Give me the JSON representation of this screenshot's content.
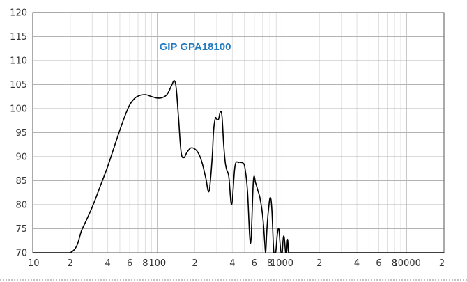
{
  "chart_data": {
    "type": "line",
    "title": "GIP GPA18100",
    "title_color": "#1f7ac0",
    "line_color": "#000000",
    "xscale": "log",
    "xlim": [
      10,
      20000
    ],
    "ylim": [
      70,
      120
    ],
    "x_ticks": [
      {
        "value": 10,
        "label": "10"
      },
      {
        "value": 20,
        "label": "2"
      },
      {
        "value": 40,
        "label": "4"
      },
      {
        "value": 60,
        "label": "6"
      },
      {
        "value": 80,
        "label": "8"
      },
      {
        "value": 100,
        "label": "100"
      },
      {
        "value": 200,
        "label": "2"
      },
      {
        "value": 400,
        "label": "4"
      },
      {
        "value": 600,
        "label": "6"
      },
      {
        "value": 800,
        "label": "8"
      },
      {
        "value": 1000,
        "label": "1000"
      },
      {
        "value": 2000,
        "label": "2"
      },
      {
        "value": 4000,
        "label": "4"
      },
      {
        "value": 6000,
        "label": "6"
      },
      {
        "value": 8000,
        "label": "8"
      },
      {
        "value": 10000,
        "label": "10000"
      },
      {
        "value": 20000,
        "label": "2"
      }
    ],
    "y_ticks": [
      {
        "value": 120,
        "label": "120"
      },
      {
        "value": 115,
        "label": "115"
      },
      {
        "value": 110,
        "label": "110"
      },
      {
        "value": 105,
        "label": "105"
      },
      {
        "value": 100,
        "label": "100"
      },
      {
        "value": 95,
        "label": "95"
      },
      {
        "value": 90,
        "label": "90"
      },
      {
        "value": 85,
        "label": "85"
      },
      {
        "value": 80,
        "label": "80"
      },
      {
        "value": 75,
        "label": "75"
      },
      {
        "value": 70,
        "label": "70"
      }
    ],
    "grid": true,
    "series": [
      {
        "x": [
          10,
          20,
          25,
          30,
          35,
          40,
          45,
          50,
          55,
          60,
          65,
          70,
          80,
          90,
          100,
          110,
          120,
          130,
          137,
          142,
          148,
          155,
          163,
          172,
          185,
          200,
          215,
          230,
          245,
          260,
          275,
          283,
          292,
          300,
          310,
          320,
          330,
          340,
          350,
          360,
          375,
          395,
          420,
          450,
          470,
          485,
          500,
          515,
          530,
          560,
          590,
          615,
          640,
          665,
          690,
          710,
          726,
          740,
          758,
          780,
          805,
          830,
          860,
          890,
          915,
          935,
          950,
          965,
          985,
          1005,
          1020,
          1035,
          1050,
          1070,
          1090,
          1110,
          1130,
          1150,
          1170,
          1190,
          1210,
          1235,
          1260,
          1280,
          1300,
          1325,
          1345,
          1365,
          1385,
          1400,
          1415,
          1430,
          1445,
          1460,
          1480,
          1500,
          20000
        ],
        "y": [
          70,
          70,
          75,
          79.5,
          84,
          88,
          92,
          95.5,
          98.5,
          100.8,
          102,
          102.6,
          102.9,
          102.5,
          102.2,
          102.3,
          103,
          104.8,
          105.8,
          104,
          98,
          91,
          89.8,
          90.8,
          91.8,
          91.6,
          90.6,
          88.5,
          85.5,
          82.8,
          89.5,
          95.5,
          98,
          97.8,
          97.8,
          99.3,
          98.5,
          93,
          89,
          87.3,
          85.8,
          80,
          88,
          88.8,
          88.8,
          88.7,
          88.2,
          86,
          82.5,
          72,
          85,
          84.5,
          83,
          81.5,
          79,
          76,
          72.5,
          70,
          75,
          79,
          81.5,
          79,
          70,
          70,
          73.5,
          75,
          74.5,
          72,
          70,
          70,
          72.5,
          73.5,
          72.5,
          70,
          70,
          72.8,
          70,
          70,
          70,
          70,
          70,
          70,
          70,
          70,
          70,
          70,
          70,
          70,
          70,
          70,
          70,
          70,
          70,
          70,
          70,
          70,
          70
        ]
      }
    ]
  }
}
